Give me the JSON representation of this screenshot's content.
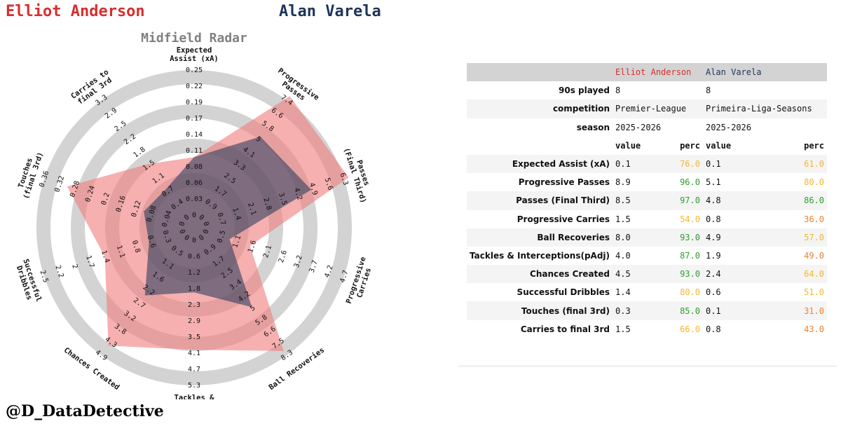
{
  "header": {
    "player1": "Elliot Anderson",
    "player2": "Alan Varela",
    "color1": "#d62f2f",
    "color2": "#1e3558"
  },
  "chart_data": {
    "type": "radar",
    "title": "Midfield Radar",
    "rings": 4,
    "ring_color": "#d3d3d3",
    "axes": [
      {
        "label": "Expected\nAssist (xA)",
        "ticks": [
          "0",
          "0.03",
          "0.06",
          "0.08",
          "0.11",
          "0.14",
          "0.17",
          "0.19",
          "0.22",
          "0.25"
        ],
        "max": 0.25
      },
      {
        "label": "Progressive\nPasses",
        "ticks": [
          "0",
          "0.9",
          "1.7",
          "2.5",
          "3.3",
          "4.1",
          "5",
          "5.8",
          "6.6",
          "7.4"
        ],
        "max": 7.4
      },
      {
        "label": "Passes\n(Final Third)",
        "ticks": [
          "0",
          "0.7",
          "1.4",
          "2.1",
          "2.8",
          "3.5",
          "4.2",
          "4.9",
          "5.6",
          "6.3"
        ],
        "max": 6.3
      },
      {
        "label": "Progressive\nCarries",
        "ticks": [
          "0",
          "0.5",
          "1.1",
          "1.6",
          "2.1",
          "2.6",
          "3.2",
          "3.7",
          "4.2",
          "4.7"
        ],
        "max": 4.7
      },
      {
        "label": "Ball Recoveries",
        "ticks": [
          "0",
          "0.9",
          "1.7",
          "2.5",
          "3.4",
          "4.2",
          "5",
          "5.8",
          "6.6",
          "7.5",
          "8.3"
        ],
        "max": 8.3
      },
      {
        "label": "Tackles &\nInterceptions(pAdj)",
        "ticks": [
          "0",
          "0.6",
          "1.2",
          "1.8",
          "2.3",
          "2.9",
          "3.5",
          "4.1",
          "4.7",
          "5.3"
        ],
        "max": 5.3
      },
      {
        "label": "Chances Created",
        "ticks": [
          "0",
          "0.5",
          "1.1",
          "1.6",
          "2.2",
          "2.7",
          "3.2",
          "3.8",
          "4.3",
          "4.9"
        ],
        "max": 4.9
      },
      {
        "label": "Successful\nDribbles",
        "ticks": [
          "0",
          "0.3",
          "0.6",
          "0.8",
          "1.1",
          "1.4",
          "1.7",
          "2",
          "2.2",
          "2.5"
        ],
        "max": 2.5
      },
      {
        "label": "Touches\n(final 3rd)",
        "ticks": [
          "0",
          "0.04",
          "0.08",
          "0.12",
          "0.16",
          "0.2",
          "0.24",
          "0.28",
          "0.32",
          "0.36"
        ],
        "max": 0.36
      },
      {
        "label": "Carries to\nfinal 3rd",
        "ticks": [
          "0",
          "0.4",
          "0.7",
          "1.1",
          "1.5",
          "1.8",
          "2.2",
          "2.5",
          "2.9",
          "3.3"
        ],
        "max": 3.3
      }
    ],
    "series": [
      {
        "name": "Elliot Anderson",
        "values": [
          0.1,
          8.9,
          8.5,
          1.5,
          8.0,
          4.0,
          4.5,
          1.4,
          0.3,
          1.5
        ],
        "color": "#f08080"
      },
      {
        "name": "Alan Varela",
        "values": [
          0.1,
          5.1,
          4.8,
          0.8,
          4.9,
          1.9,
          2.4,
          0.6,
          0.1,
          0.8
        ],
        "color": "#1e3558"
      }
    ]
  },
  "table": {
    "header": [
      "",
      "Elliot Anderson",
      "Alan Varela"
    ],
    "info_rows": [
      {
        "label": "90s played",
        "v1": "8",
        "v2": "8"
      },
      {
        "label": "competition",
        "v1": "Premier-League",
        "v2": "Primeira-Liga-Seasons"
      },
      {
        "label": "season",
        "v1": "2025-2026",
        "v2": "2025-2026"
      }
    ],
    "sub_header": {
      "value": "value",
      "perc": "perc"
    },
    "stat_rows": [
      {
        "label": "Expected Assist (xA)",
        "v1": "0.1",
        "p1": "76.0",
        "v2": "0.1",
        "p2": "61.0"
      },
      {
        "label": "Progressive Passes",
        "v1": "8.9",
        "p1": "96.0",
        "v2": "5.1",
        "p2": "80.0"
      },
      {
        "label": "Passes (Final Third)",
        "v1": "8.5",
        "p1": "97.0",
        "v2": "4.8",
        "p2": "86.0"
      },
      {
        "label": "Progressive Carries",
        "v1": "1.5",
        "p1": "54.0",
        "v2": "0.8",
        "p2": "36.0"
      },
      {
        "label": "Ball Recoveries",
        "v1": "8.0",
        "p1": "93.0",
        "v2": "4.9",
        "p2": "57.0"
      },
      {
        "label": "Tackles & Interceptions(pAdj)",
        "v1": "4.0",
        "p1": "87.0",
        "v2": "1.9",
        "p2": "49.0"
      },
      {
        "label": "Chances Created",
        "v1": "4.5",
        "p1": "93.0",
        "v2": "2.4",
        "p2": "64.0"
      },
      {
        "label": "Successful Dribbles",
        "v1": "1.4",
        "p1": "80.0",
        "v2": "0.6",
        "p2": "51.0"
      },
      {
        "label": "Touches (final 3rd)",
        "v1": "0.3",
        "p1": "85.0",
        "v2": "0.1",
        "p2": "31.0"
      },
      {
        "label": "Carries to final 3rd",
        "v1": "1.5",
        "p1": "66.0",
        "v2": "0.8",
        "p2": "43.0"
      }
    ],
    "perc_colors": {
      "high": "#2ca02c",
      "mid": "#f5b729",
      "low": "#f08030"
    }
  },
  "footer": {
    "credit": "@D_DataDetective"
  }
}
